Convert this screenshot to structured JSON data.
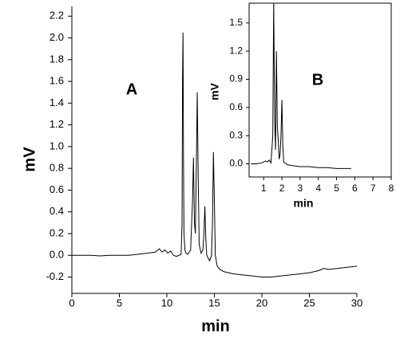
{
  "chart_data": [
    {
      "type": "line",
      "panel_label": "A",
      "x_label": "min",
      "y_label": "mV",
      "xlim": [
        0,
        30
      ],
      "xticks": [
        0,
        5,
        10,
        15,
        20,
        25,
        30
      ],
      "ylim": [
        -0.35,
        2.29
      ],
      "yticks": [
        -0.2,
        {
          "value": 0,
          "label": "0.0"
        },
        0.2,
        0.4,
        0.6,
        0.8,
        {
          "value": 1,
          "label": "1.0"
        },
        1.2,
        1.4,
        1.6,
        1.8,
        {
          "value": 2,
          "label": "2.0"
        },
        2.2
      ],
      "series": [
        {
          "color": "#000000",
          "x": [
            0,
            1,
            2,
            3,
            4,
            5,
            6,
            7,
            8,
            8.8,
            9.2,
            9.5,
            9.8,
            10.1,
            10.4,
            10.7,
            11.0,
            11.3,
            11.5,
            11.6,
            11.65,
            11.7,
            11.75,
            11.8,
            11.9,
            12.0,
            12.2,
            12.5,
            12.7,
            12.8,
            12.9,
            13.0,
            13.1,
            13.2,
            13.3,
            13.4,
            13.6,
            13.8,
            13.9,
            14.0,
            14.1,
            14.2,
            14.5,
            14.7,
            14.8,
            14.9,
            15.0,
            15.1,
            15.3,
            15.6,
            16,
            17,
            18,
            19,
            20,
            21,
            22,
            23,
            24,
            25,
            26,
            26.5,
            27,
            28,
            29,
            30
          ],
          "values": [
            0,
            0,
            0,
            -0.005,
            0,
            0,
            0,
            0.01,
            0.02,
            0.03,
            0.06,
            0.03,
            0.05,
            0.02,
            0.04,
            0,
            -0.01,
            0,
            0.01,
            0.3,
            1.65,
            2.05,
            0.9,
            0.2,
            0.05,
            0.02,
            0.01,
            0.05,
            0.5,
            0.9,
            0.3,
            0.2,
            0.8,
            1.5,
            0.7,
            0.1,
            0.02,
            0.05,
            0.2,
            0.45,
            0.15,
            0.0,
            -0.05,
            0.0,
            0.3,
            0.95,
            0.5,
            0.0,
            -0.1,
            -0.13,
            -0.15,
            -0.17,
            -0.18,
            -0.19,
            -0.2,
            -0.2,
            -0.19,
            -0.18,
            -0.17,
            -0.16,
            -0.14,
            -0.12,
            -0.13,
            -0.12,
            -0.11,
            -0.1
          ]
        }
      ]
    },
    {
      "type": "line",
      "panel_label": "B",
      "x_label": "min",
      "y_label": "mV",
      "xlim": [
        0.2,
        8
      ],
      "xticks": [
        1,
        2,
        3,
        4,
        5,
        6,
        7,
        8
      ],
      "ylim": [
        -0.14,
        1.71
      ],
      "yticks": [
        {
          "value": 0,
          "label": "0.0"
        },
        0.3,
        0.6,
        0.9,
        1.2,
        1.5
      ],
      "series": [
        {
          "color": "#000000",
          "x": [
            0.3,
            0.6,
            0.9,
            1.1,
            1.2,
            1.3,
            1.4,
            1.5,
            1.55,
            1.6,
            1.65,
            1.7,
            1.75,
            1.8,
            1.85,
            1.9,
            1.95,
            2.0,
            2.05,
            2.1,
            2.3,
            2.6,
            3,
            3.5,
            4,
            4.5,
            5,
            5.5,
            5.8
          ],
          "values": [
            0,
            0,
            0.01,
            0.03,
            0.02,
            0.04,
            0.01,
            0.3,
            1.75,
            0.5,
            0.15,
            1.2,
            0.4,
            0.25,
            0.05,
            0.1,
            0.3,
            0.68,
            0.2,
            0.02,
            -0.01,
            -0.02,
            -0.03,
            -0.03,
            -0.04,
            -0.04,
            -0.05,
            -0.05,
            -0.05
          ]
        }
      ]
    }
  ]
}
